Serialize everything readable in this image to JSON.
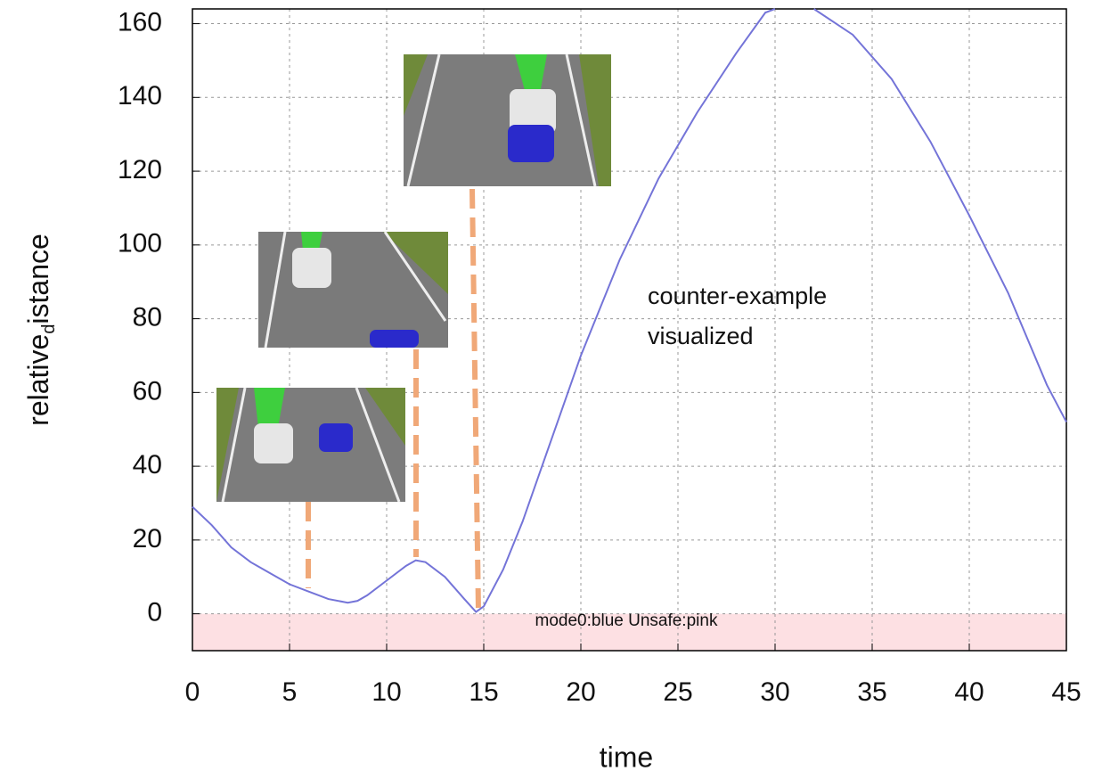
{
  "chart_data": {
    "type": "line",
    "x": [
      0,
      1,
      2,
      3,
      4,
      5,
      6,
      7,
      8,
      8.5,
      9,
      10,
      11,
      11.5,
      12,
      13,
      14,
      14.6,
      15,
      16,
      17,
      18,
      19,
      20,
      22,
      24,
      26,
      28,
      29.5,
      30,
      31,
      32,
      34,
      36,
      38,
      40,
      42,
      44,
      45
    ],
    "series": [
      {
        "color": "#7474d8",
        "values": [
          29,
          24,
          18,
          14,
          11,
          8,
          6,
          4,
          3,
          3.5,
          5,
          9,
          13,
          14.5,
          14,
          10,
          4,
          0.5,
          2,
          12,
          25,
          40,
          55,
          70,
          96,
          118,
          136,
          152,
          163,
          164,
          null,
          164,
          157,
          145,
          128,
          108,
          87,
          62,
          52
        ]
      }
    ],
    "xlim": [
      0,
      45
    ],
    "xticks": [
      0,
      5,
      10,
      15,
      20,
      25,
      30,
      35,
      40,
      45
    ],
    "ylim": [
      -10,
      164
    ],
    "yticks": [
      0,
      20,
      40,
      60,
      80,
      100,
      120,
      140,
      160
    ],
    "grid": true,
    "xlabel": "time",
    "ylabel": [
      "relative",
      "d",
      "istance"
    ],
    "unsafe_region": {
      "range": [
        -10,
        0
      ],
      "color": "#fde0e3"
    },
    "legend_text": "mode0:blue Unsafe:pink",
    "annotation": [
      "counter-example",
      "visualized"
    ]
  }
}
